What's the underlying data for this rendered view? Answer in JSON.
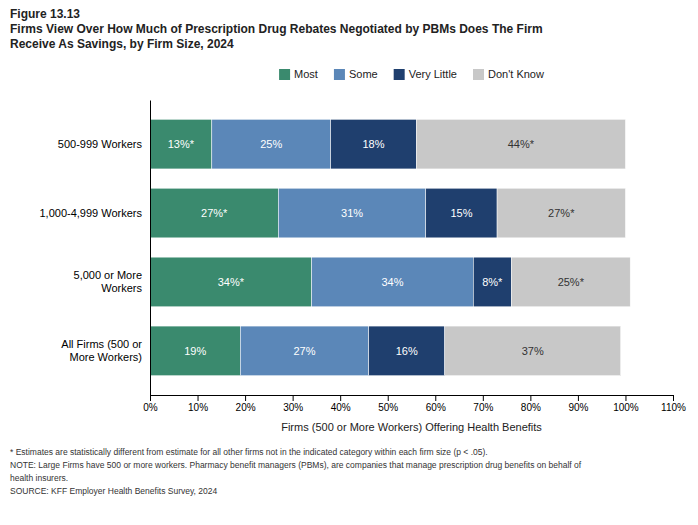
{
  "chart_data": {
    "type": "bar",
    "orientation": "horizontal",
    "stacked": true,
    "title": "Figure 13.13",
    "subtitle": "Firms View Over How Much of Prescription Drug Rebates Negotiated by PBMs Does The Firm\nReceive As Savings, by Firm Size, 2024",
    "categories": [
      "500-999 Workers",
      "1,000-4,999 Workers",
      "5,000 or More\nWorkers",
      "All Firms (500 or\nMore Workers)"
    ],
    "series": [
      {
        "name": "Most",
        "color": "#3a8a6e",
        "values": [
          13,
          27,
          34,
          19
        ],
        "value_labels": [
          "13%*",
          "27%*",
          "34%*",
          "19%"
        ]
      },
      {
        "name": "Some",
        "color": "#5b87b8",
        "values": [
          25,
          31,
          34,
          27
        ],
        "value_labels": [
          "25%",
          "31%",
          "34%",
          "27%"
        ]
      },
      {
        "name": "Very Little",
        "color": "#1f3f6e",
        "values": [
          18,
          15,
          8,
          16
        ],
        "value_labels": [
          "18%",
          "15%",
          "8%*",
          "16%"
        ]
      },
      {
        "name": "Don't Know",
        "color": "#c8c8c8",
        "values": [
          44,
          27,
          25,
          37
        ],
        "value_labels": [
          "44%*",
          "27%*",
          "25%*",
          "37%"
        ]
      }
    ],
    "data_labels": true,
    "xlabel": "Firms (500 or More Workers) Offering Health Benefits",
    "xlim": [
      0,
      110
    ],
    "xticks": [
      {
        "value": 0,
        "label": "0%"
      },
      {
        "value": 10,
        "label": "10%"
      },
      {
        "value": 20,
        "label": "20%"
      },
      {
        "value": 30,
        "label": "30%"
      },
      {
        "value": 40,
        "label": "40%"
      },
      {
        "value": 50,
        "label": "50%"
      },
      {
        "value": 60,
        "label": "60%"
      },
      {
        "value": 70,
        "label": "70%"
      },
      {
        "value": 80,
        "label": "80%"
      },
      {
        "value": 90,
        "label": "90%"
      },
      {
        "value": 100,
        "label": "100%"
      },
      {
        "value": 110,
        "label": "110%"
      }
    ],
    "grid": false,
    "legend": "top",
    "annotations": [
      "* Estimates are statistically different from estimate for all other firms not in the indicated category within each firm size (p < .05).",
      "NOTE: Large Firms have 500 or more workers.  Pharmacy benefit managers (PBMs), are companies that manage prescription drug benefits on behalf of",
      "health insurers.",
      "SOURCE: KFF Employer Health Benefits Survey, 2024"
    ]
  }
}
